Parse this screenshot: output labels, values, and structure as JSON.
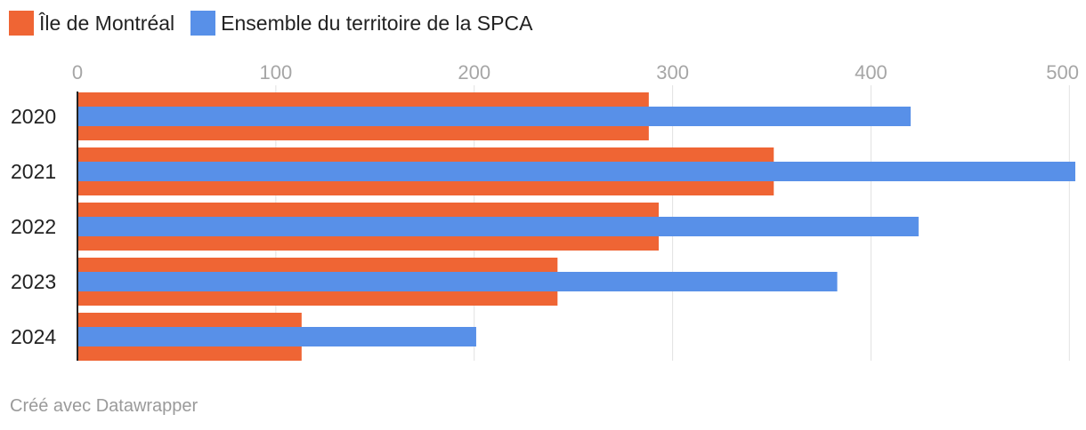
{
  "legend": {
    "items": [
      {
        "label": "Île de Montréal",
        "color": "#ef6534"
      },
      {
        "label": "Ensemble du territoire de la SPCA",
        "color": "#5890e8"
      }
    ]
  },
  "footer": {
    "text": "Créé avec Datawrapper"
  },
  "chart_data": {
    "type": "bar",
    "orientation": "horizontal",
    "categories": [
      "2020",
      "2021",
      "2022",
      "2023",
      "2024"
    ],
    "series": [
      {
        "name": "Île de Montréal",
        "color": "#ef6534",
        "values": [
          288,
          351,
          293,
          242,
          113
        ]
      },
      {
        "name": "Ensemble du territoire de la SPCA",
        "color": "#5890e8",
        "values": [
          420,
          503,
          424,
          383,
          201
        ]
      }
    ],
    "xticks": [
      0,
      100,
      200,
      300,
      400,
      500
    ],
    "xlim": [
      0,
      503
    ],
    "grid": true,
    "legend_position": "top-left"
  }
}
